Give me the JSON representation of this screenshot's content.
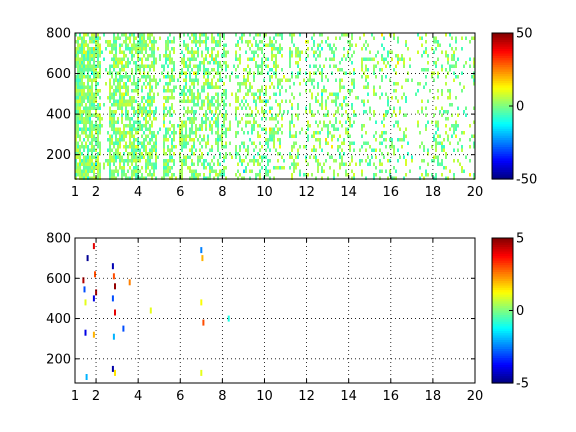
{
  "chart_data": [
    {
      "type": "heatmap",
      "title": "",
      "xlabel": "",
      "ylabel": "",
      "xlim": [
        1,
        20
      ],
      "ylim": [
        80,
        800
      ],
      "xticks": [
        "1",
        "2",
        "4",
        "6",
        "8",
        "10",
        "12",
        "14",
        "16",
        "18",
        "20"
      ],
      "yticks": [
        "200",
        "400",
        "600",
        "800"
      ],
      "grid": true,
      "colormap": "jet",
      "background": "white (missing values)",
      "colorbar": {
        "min": -50,
        "max": 50,
        "ticks": [
          "50",
          "0",
          "-50"
        ]
      },
      "description_values": "dense speckle of small values near 0 (cyan/green/yellow), densest at low x, thinning toward x=20; vertical stripes of missing data"
    },
    {
      "type": "heatmap",
      "title": "",
      "xlabel": "",
      "ylabel": "",
      "xlim": [
        1,
        20
      ],
      "ylim": [
        80,
        800
      ],
      "xticks": [
        "1",
        "2",
        "4",
        "6",
        "8",
        "10",
        "12",
        "14",
        "16",
        "18",
        "20"
      ],
      "yticks": [
        "200",
        "400",
        "600",
        "800"
      ],
      "grid": true,
      "colormap": "jet",
      "background": "white (missing values)",
      "colorbar": {
        "min": -5,
        "max": 5,
        "ticks": [
          "5",
          "0",
          "-5"
        ]
      },
      "sparse_points": [
        {
          "x": 1.4,
          "y": 590,
          "v": 4.5
        },
        {
          "x": 1.45,
          "y": 545,
          "v": -3
        },
        {
          "x": 1.5,
          "y": 480,
          "v": 1
        },
        {
          "x": 1.5,
          "y": 330,
          "v": -4
        },
        {
          "x": 1.6,
          "y": 700,
          "v": -4.8
        },
        {
          "x": 1.55,
          "y": 110,
          "v": -2
        },
        {
          "x": 1.9,
          "y": 760,
          "v": 4
        },
        {
          "x": 1.95,
          "y": 620,
          "v": 3
        },
        {
          "x": 2.0,
          "y": 530,
          "v": 4.6
        },
        {
          "x": 1.9,
          "y": 500,
          "v": -4
        },
        {
          "x": 1.9,
          "y": 320,
          "v": 2
        },
        {
          "x": 2.8,
          "y": 660,
          "v": -4.5
        },
        {
          "x": 2.85,
          "y": 610,
          "v": 3
        },
        {
          "x": 2.9,
          "y": 560,
          "v": 4.8
        },
        {
          "x": 2.8,
          "y": 500,
          "v": -3
        },
        {
          "x": 2.9,
          "y": 430,
          "v": 4
        },
        {
          "x": 2.85,
          "y": 310,
          "v": -2
        },
        {
          "x": 2.8,
          "y": 150,
          "v": -4.6
        },
        {
          "x": 2.9,
          "y": 130,
          "v": 1.5
        },
        {
          "x": 3.3,
          "y": 350,
          "v": -3
        },
        {
          "x": 3.6,
          "y": 580,
          "v": 2.5
        },
        {
          "x": 4.6,
          "y": 440,
          "v": 1
        },
        {
          "x": 7.0,
          "y": 740,
          "v": -2.5
        },
        {
          "x": 7.05,
          "y": 700,
          "v": 2
        },
        {
          "x": 7.0,
          "y": 480,
          "v": 1.2
        },
        {
          "x": 7.1,
          "y": 380,
          "v": 3
        },
        {
          "x": 8.3,
          "y": 400,
          "v": -1
        },
        {
          "x": 7.0,
          "y": 130,
          "v": 1
        }
      ]
    }
  ]
}
